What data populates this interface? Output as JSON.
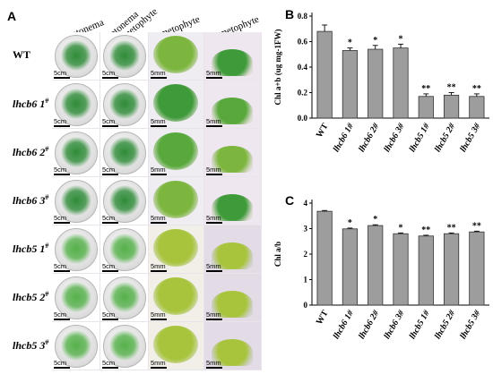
{
  "panelA": {
    "letter": "A",
    "columns": [
      "protonema",
      "protonema\n&gametophyte",
      "gametophyte",
      "gametophyte"
    ],
    "rows": [
      {
        "name": "WT",
        "sup": ""
      },
      {
        "name": "lhcb6 1",
        "sup": "#"
      },
      {
        "name": "lhcb6 2",
        "sup": "#"
      },
      {
        "name": "lhcb6 3",
        "sup": "#"
      },
      {
        "name": "lhcb5 1",
        "sup": "#"
      },
      {
        "name": "lhcb5 2",
        "sup": "#"
      },
      {
        "name": "lhcb5 3",
        "sup": "#"
      }
    ],
    "scale_labels": [
      "5cm",
      "5cm",
      "5mm",
      "5mm"
    ]
  },
  "chart_data": [
    {
      "panel": "B",
      "type": "bar",
      "ylabel": "Chl a+b (ug mg-1FW)",
      "ylim": [
        0,
        0.8
      ],
      "yticks": [
        "0.0",
        "0.2",
        "0.4",
        "0.6",
        "0.8"
      ],
      "categories": [
        "WT",
        "lhcb6 1#",
        "lhcb6 2#",
        "lhcb6 3#",
        "lhcb5 1#",
        "lhcb5 2#",
        "lhcb5 3#"
      ],
      "values": [
        0.68,
        0.53,
        0.54,
        0.55,
        0.17,
        0.18,
        0.17
      ],
      "errors": [
        0.05,
        0.02,
        0.03,
        0.03,
        0.02,
        0.02,
        0.02
      ],
      "significance": [
        "",
        "*",
        "*",
        "*",
        "**",
        "**",
        "**"
      ],
      "bar_color": "#9d9d9d"
    },
    {
      "panel": "C",
      "type": "bar",
      "ylabel": "Chl a/b",
      "ylim": [
        0,
        4
      ],
      "yticks": [
        "0",
        "1",
        "2",
        "3",
        "4"
      ],
      "categories": [
        "WT",
        "lhcb6 1#",
        "lhcb6 2#",
        "lhcb6 3#",
        "lhcb5 1#",
        "lhcb5 2#",
        "lhcb5 3#"
      ],
      "values": [
        3.68,
        2.99,
        3.12,
        2.8,
        2.71,
        2.8,
        2.87
      ],
      "errors": [
        0.03,
        0.03,
        0.03,
        0.03,
        0.03,
        0.03,
        0.03
      ],
      "significance": [
        "",
        "*",
        "*",
        "*",
        "**",
        "**",
        "**"
      ],
      "bar_color": "#9d9d9d"
    }
  ]
}
